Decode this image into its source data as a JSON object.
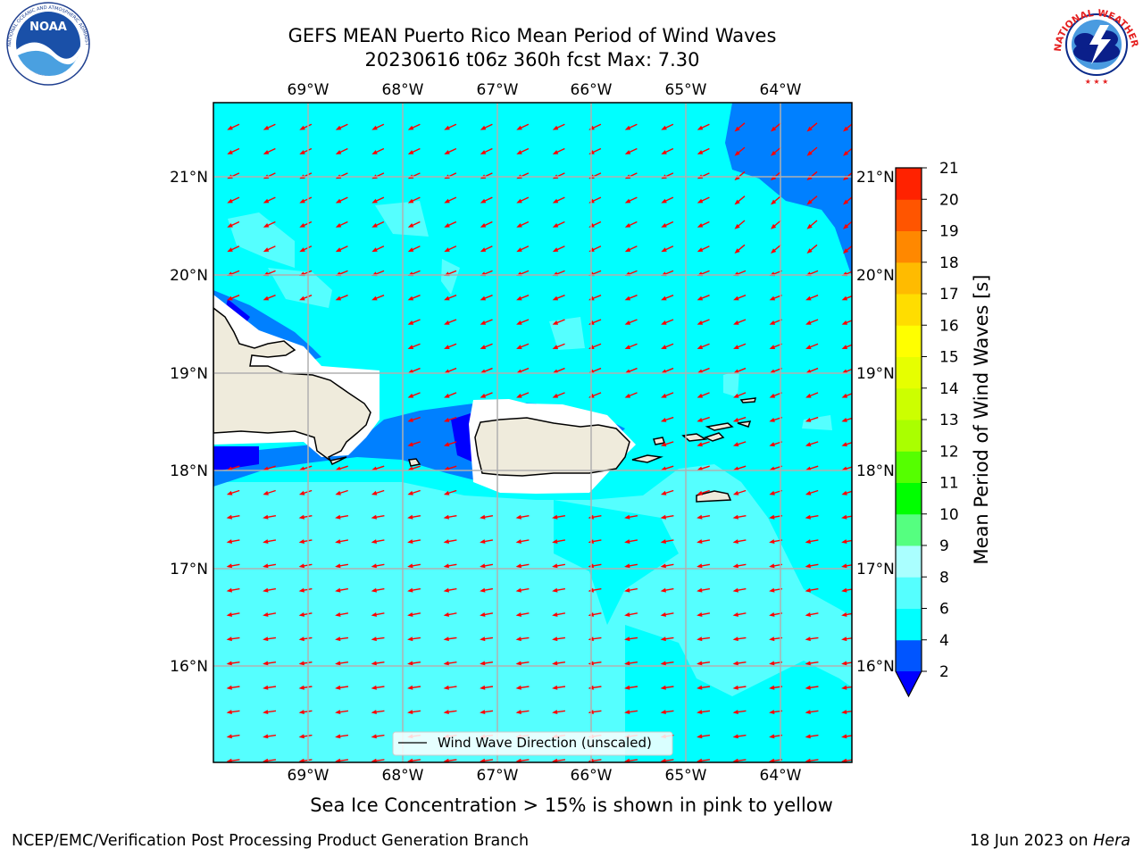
{
  "title": {
    "line1": "GEFS MEAN Puerto Rico Mean Period of Wind Waves",
    "line2": "20230616 t06z 360h fcst   Max: 7.30"
  },
  "map": {
    "lon_labels": [
      "69°W",
      "68°W",
      "67°W",
      "66°W",
      "65°W",
      "64°W"
    ],
    "lat_labels": [
      "21°N",
      "20°N",
      "19°N",
      "18°N",
      "17°N",
      "16°N"
    ],
    "legend_label": "Wind Wave Direction (unscaled)",
    "arrow_color": "#ff0000",
    "land_color": "#efebdc",
    "ocean_color": "#00ffff"
  },
  "colorbar": {
    "label": "Mean Period of Wind Waves [s]",
    "ticks": [
      "2",
      "4",
      "6",
      "8",
      "9",
      "10",
      "11",
      "12",
      "13",
      "14",
      "15",
      "16",
      "17",
      "18",
      "19",
      "20",
      "21"
    ],
    "colors": [
      "#0055ff",
      "#00ffff",
      "#55ffff",
      "#aaffff",
      "#55ff80",
      "#00ff00",
      "#55ff00",
      "#aaff00",
      "#ccff00",
      "#e6ff00",
      "#ffff00",
      "#ffdd00",
      "#ffbb00",
      "#ff8800",
      "#ff5500",
      "#ff2200"
    ],
    "below_color": "#0000ff"
  },
  "caption": "Sea Ice Concentration > 15% is shown in pink to yellow",
  "footer": {
    "left": "NCEP/EMC/Verification Post Processing Product Generation Branch",
    "right_prefix": "18 Jun 2023 on ",
    "right_machine": "Hera"
  },
  "logos": {
    "noaa": "NOAA",
    "noaa_ring": "NATIONAL OCEANIC AND ATMOSPHERIC ADMINISTRATION · U.S. DEPARTMENT OF COMMERCE",
    "nws_ring": "NATIONAL WEATHER SERVICE"
  }
}
